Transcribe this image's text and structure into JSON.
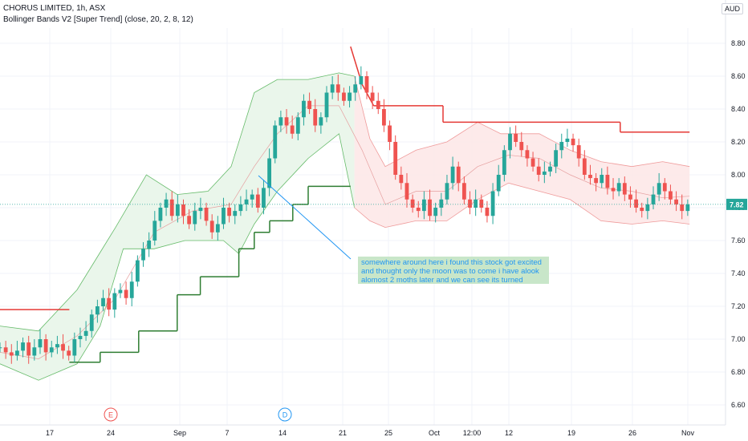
{
  "header": {
    "title": "CHORUS LIMITED, 1h, ASX",
    "indicator": "Bollinger Bands V2 [Super Trend] (close, 20, 2, 8, 12)"
  },
  "currency": "AUD",
  "annotation": {
    "text": "somewhere around here i found this stock got excited and thought only the moon was to come i have alook alomost 2 moths later and we can see its turned around"
  },
  "colors": {
    "up": "#26a69a",
    "down": "#ef5350",
    "band_green_fill": "#e8f5e9",
    "band_red_fill": "#fde8e8",
    "supertrend_up": "#2e7d32",
    "supertrend_down": "#e53935",
    "note_bg": "#c8e6c9",
    "note_text": "#2196f3",
    "price_tag": "#26a69a"
  },
  "chart_data": {
    "type": "candlestick",
    "y_axis": {
      "ticks": [
        "8.80",
        "8.60",
        "8.40",
        "8.20",
        "8.00",
        "7.80",
        "7.60",
        "7.40",
        "7.20",
        "7.00",
        "6.80",
        "6.60"
      ],
      "range": [
        6.55,
        8.9
      ]
    },
    "x_axis": {
      "ticks": [
        "17",
        "24",
        "Sep",
        "7",
        "14",
        "21",
        "25",
        "Oct",
        "12:00",
        "12",
        "19",
        "26",
        "Nov"
      ]
    },
    "last_price": "7.82",
    "event_markers": [
      "E",
      "D"
    ],
    "supertrend": [
      {
        "x": 0.0,
        "y": 7.18,
        "dir": "down"
      },
      {
        "x": 0.9,
        "y": 7.18,
        "dir": "down"
      },
      {
        "x": 0.9,
        "y": 6.86,
        "dir": "up"
      },
      {
        "x": 1.3,
        "y": 6.86,
        "dir": "up"
      },
      {
        "x": 1.3,
        "y": 6.92,
        "dir": "up"
      },
      {
        "x": 1.8,
        "y": 6.92,
        "dir": "up"
      },
      {
        "x": 1.8,
        "y": 7.05,
        "dir": "up"
      },
      {
        "x": 2.3,
        "y": 7.05,
        "dir": "up"
      },
      {
        "x": 2.3,
        "y": 7.27,
        "dir": "up"
      },
      {
        "x": 2.6,
        "y": 7.27,
        "dir": "up"
      },
      {
        "x": 2.6,
        "y": 7.38,
        "dir": "up"
      },
      {
        "x": 3.1,
        "y": 7.38,
        "dir": "up"
      },
      {
        "x": 3.1,
        "y": 7.55,
        "dir": "up"
      },
      {
        "x": 3.3,
        "y": 7.55,
        "dir": "up"
      },
      {
        "x": 3.3,
        "y": 7.65,
        "dir": "up"
      },
      {
        "x": 3.5,
        "y": 7.65,
        "dir": "up"
      },
      {
        "x": 3.5,
        "y": 7.72,
        "dir": "up"
      },
      {
        "x": 3.8,
        "y": 7.72,
        "dir": "up"
      },
      {
        "x": 3.8,
        "y": 7.82,
        "dir": "up"
      },
      {
        "x": 4.0,
        "y": 7.82,
        "dir": "up"
      },
      {
        "x": 4.0,
        "y": 7.93,
        "dir": "up"
      },
      {
        "x": 4.55,
        "y": 7.93,
        "dir": "up"
      },
      {
        "x": 4.55,
        "y": 8.78,
        "dir": "down"
      },
      {
        "x": 4.7,
        "y": 8.55,
        "dir": "down"
      },
      {
        "x": 4.85,
        "y": 8.42,
        "dir": "down"
      },
      {
        "x": 5.75,
        "y": 8.42,
        "dir": "down"
      },
      {
        "x": 5.75,
        "y": 8.32,
        "dir": "down"
      },
      {
        "x": 8.05,
        "y": 8.32,
        "dir": "down"
      },
      {
        "x": 8.05,
        "y": 8.26,
        "dir": "down"
      },
      {
        "x": 8.95,
        "y": 8.26,
        "dir": "down"
      }
    ],
    "mid": [
      [
        0.0,
        6.92
      ],
      [
        0.5,
        6.88
      ],
      [
        1.0,
        7.02
      ],
      [
        1.5,
        7.25
      ],
      [
        2.0,
        7.65
      ],
      [
        2.5,
        7.78
      ],
      [
        3.0,
        7.82
      ],
      [
        3.3,
        8.05
      ],
      [
        3.6,
        8.25
      ],
      [
        4.0,
        8.42
      ],
      [
        4.4,
        8.42
      ],
      [
        4.7,
        8.15
      ],
      [
        5.0,
        7.82
      ],
      [
        5.4,
        7.9
      ],
      [
        5.8,
        7.9
      ],
      [
        6.2,
        8.05
      ],
      [
        6.6,
        8.12
      ],
      [
        7.0,
        8.1
      ],
      [
        7.4,
        8.0
      ],
      [
        7.8,
        7.92
      ],
      [
        8.2,
        7.9
      ],
      [
        8.6,
        7.86
      ],
      [
        8.95,
        7.87
      ]
    ],
    "upper": [
      [
        0.0,
        7.08
      ],
      [
        0.5,
        7.05
      ],
      [
        1.0,
        7.3
      ],
      [
        1.5,
        7.68
      ],
      [
        1.9,
        8.0
      ],
      [
        2.3,
        7.88
      ],
      [
        2.7,
        7.9
      ],
      [
        3.0,
        8.05
      ],
      [
        3.3,
        8.5
      ],
      [
        3.6,
        8.58
      ],
      [
        4.0,
        8.58
      ],
      [
        4.4,
        8.62
      ],
      [
        4.6,
        8.6
      ],
      [
        4.8,
        8.22
      ],
      [
        5.0,
        8.05
      ],
      [
        5.4,
        8.15
      ],
      [
        5.8,
        8.2
      ],
      [
        6.2,
        8.32
      ],
      [
        6.5,
        8.25
      ],
      [
        7.0,
        8.25
      ],
      [
        7.4,
        8.15
      ],
      [
        7.8,
        8.08
      ],
      [
        8.2,
        8.05
      ],
      [
        8.6,
        8.08
      ],
      [
        8.95,
        8.05
      ]
    ],
    "lower": [
      [
        0.0,
        6.85
      ],
      [
        0.5,
        6.75
      ],
      [
        1.0,
        6.85
      ],
      [
        1.3,
        7.08
      ],
      [
        1.6,
        7.55
      ],
      [
        2.0,
        7.55
      ],
      [
        2.4,
        7.6
      ],
      [
        2.9,
        7.6
      ],
      [
        3.1,
        7.52
      ],
      [
        3.3,
        7.7
      ],
      [
        3.6,
        7.9
      ],
      [
        4.0,
        8.1
      ],
      [
        4.4,
        8.25
      ],
      [
        4.6,
        7.8
      ],
      [
        4.8,
        7.72
      ],
      [
        5.0,
        7.68
      ],
      [
        5.4,
        7.72
      ],
      [
        5.8,
        7.72
      ],
      [
        6.2,
        7.85
      ],
      [
        6.6,
        7.95
      ],
      [
        7.0,
        7.9
      ],
      [
        7.4,
        7.85
      ],
      [
        7.8,
        7.72
      ],
      [
        8.2,
        7.7
      ],
      [
        8.6,
        7.72
      ],
      [
        8.95,
        7.7
      ]
    ],
    "closes": [
      6.95,
      6.92,
      6.9,
      6.93,
      6.98,
      6.9,
      6.95,
      7.0,
      6.92,
      6.95,
      6.97,
      6.93,
      6.9,
      7.0,
      7.02,
      7.05,
      7.15,
      7.2,
      7.25,
      7.18,
      7.28,
      7.3,
      7.25,
      7.35,
      7.48,
      7.55,
      7.6,
      7.72,
      7.8,
      7.85,
      7.75,
      7.82,
      7.75,
      7.7,
      7.78,
      7.8,
      7.72,
      7.65,
      7.7,
      7.8,
      7.75,
      7.78,
      7.82,
      7.85,
      7.88,
      7.8,
      7.92,
      8.1,
      8.3,
      8.35,
      8.3,
      8.25,
      8.35,
      8.45,
      8.4,
      8.3,
      8.35,
      8.5,
      8.55,
      8.5,
      8.45,
      8.5,
      8.55,
      8.6,
      8.5,
      8.45,
      8.4,
      8.3,
      8.2,
      8.0,
      7.95,
      7.85,
      7.8,
      7.78,
      7.85,
      7.75,
      7.8,
      7.85,
      7.95,
      8.05,
      7.95,
      7.85,
      7.8,
      7.85,
      7.8,
      7.75,
      7.9,
      8.0,
      8.15,
      8.25,
      8.2,
      8.15,
      8.1,
      8.05,
      8.0,
      8.02,
      8.05,
      8.15,
      8.2,
      8.22,
      8.18,
      8.1,
      8.0,
      7.98,
      7.95,
      8.0,
      7.92,
      7.9,
      7.95,
      7.88,
      7.85,
      7.8,
      7.78,
      7.82,
      7.88,
      7.95,
      7.9,
      7.85,
      7.82,
      7.78,
      7.82
    ]
  }
}
